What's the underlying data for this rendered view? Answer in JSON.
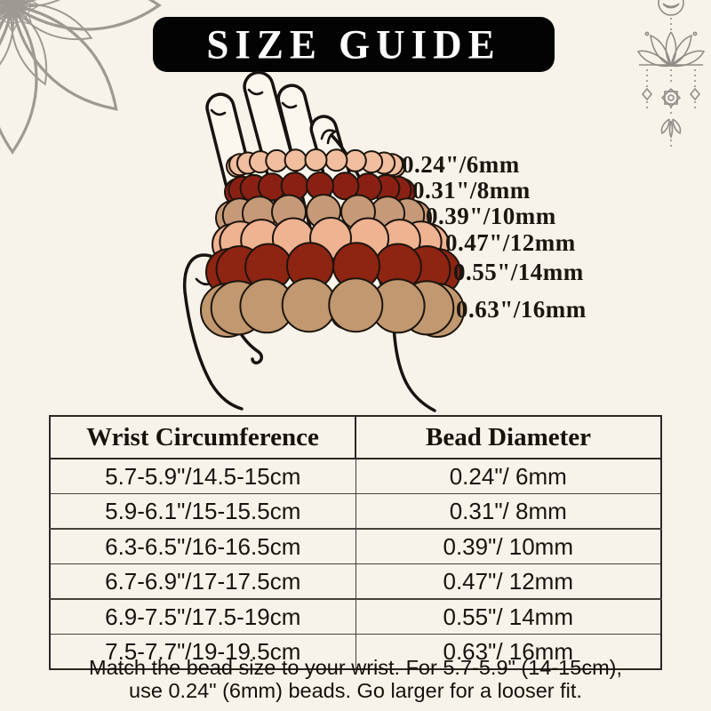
{
  "title": {
    "text": "SIZE GUIDE",
    "bg_color": "#030303",
    "text_color": "#ffffff"
  },
  "beads": {
    "rows": [
      {
        "label": "0.24\"/6mm",
        "color": "#f1bf9f",
        "count": 13
      },
      {
        "label": "0.31\"/8mm",
        "color": "#8a2013",
        "count": 11
      },
      {
        "label": "0.39\"/10mm",
        "color": "#c69a78",
        "count": 9
      },
      {
        "label": "0.47\"/12mm",
        "color": "#f0b392",
        "count": 9
      },
      {
        "label": "0.55\"/14mm",
        "color": "#8e2412",
        "count": 8
      },
      {
        "label": "0.63\"/16mm",
        "color": "#c1986f",
        "count": 8
      }
    ]
  },
  "table": {
    "headers": [
      "Wrist Circumference",
      "Bead Diameter"
    ],
    "rows": [
      {
        "wrist": "5.7-5.9\"/14.5-15cm",
        "bead": "0.24\"/ 6mm"
      },
      {
        "wrist": "5.9-6.1\"/15-15.5cm",
        "bead": "0.31\"/ 8mm"
      },
      {
        "wrist": "6.3-6.5\"/16-16.5cm",
        "bead": "0.39\"/ 10mm"
      },
      {
        "wrist": "6.7-6.9\"/17-17.5cm",
        "bead": "0.47\"/ 12mm"
      },
      {
        "wrist": "6.9-7.5\"/17.5-19cm",
        "bead": "0.55\"/ 14mm"
      },
      {
        "wrist": "7.5-7.7\"/19-19.5cm",
        "bead": "0.63\"/ 16mm"
      }
    ]
  },
  "footer": {
    "line1": "Match the bead size to your wrist. For 5.7-5.9\" (14-15cm),",
    "line2": "use 0.24\" (6mm) beads. Go larger for a looser fit."
  },
  "colors": {
    "background": "#f8f3ea",
    "outline": "#161310",
    "hand_fill": "#fbf7ee",
    "ornament_gray": "#9d9a93"
  }
}
